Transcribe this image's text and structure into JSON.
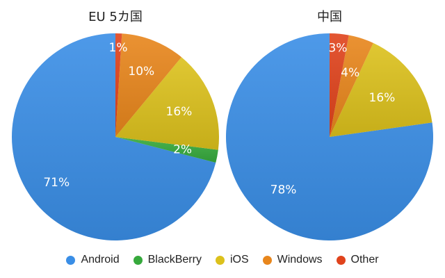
{
  "chart_data": [
    {
      "type": "pie",
      "title": "EU 5カ国",
      "slices": [
        {
          "name": "Android",
          "value": 71,
          "label": "71%"
        },
        {
          "name": "BlackBerry",
          "value": 2,
          "label": "2%"
        },
        {
          "name": "iOS",
          "value": 16,
          "label": "16%"
        },
        {
          "name": "Windows",
          "value": 10,
          "label": "10%"
        },
        {
          "name": "Other",
          "value": 1,
          "label": "1%"
        }
      ]
    },
    {
      "type": "pie",
      "title": "中国",
      "slices": [
        {
          "name": "Android",
          "value": 78,
          "label": "78%"
        },
        {
          "name": "iOS",
          "value": 16,
          "label": "16%"
        },
        {
          "name": "Windows",
          "value": 4,
          "label": "4%"
        },
        {
          "name": "Other",
          "value": 3,
          "label": "3%"
        }
      ]
    }
  ],
  "legend": [
    {
      "name": "Android",
      "color": "#3a8ee6"
    },
    {
      "name": "BlackBerry",
      "color": "#36a93c"
    },
    {
      "name": "iOS",
      "color": "#dcc11c"
    },
    {
      "name": "Windows",
      "color": "#e8861c"
    },
    {
      "name": "Other",
      "color": "#e0431c"
    }
  ],
  "colors": {
    "Android": "#3a8ee6",
    "BlackBerry": "#36a93c",
    "iOS": "#dcc11c",
    "Windows": "#e8861c",
    "Other": "#e0431c"
  },
  "legend_placement": "bottom"
}
